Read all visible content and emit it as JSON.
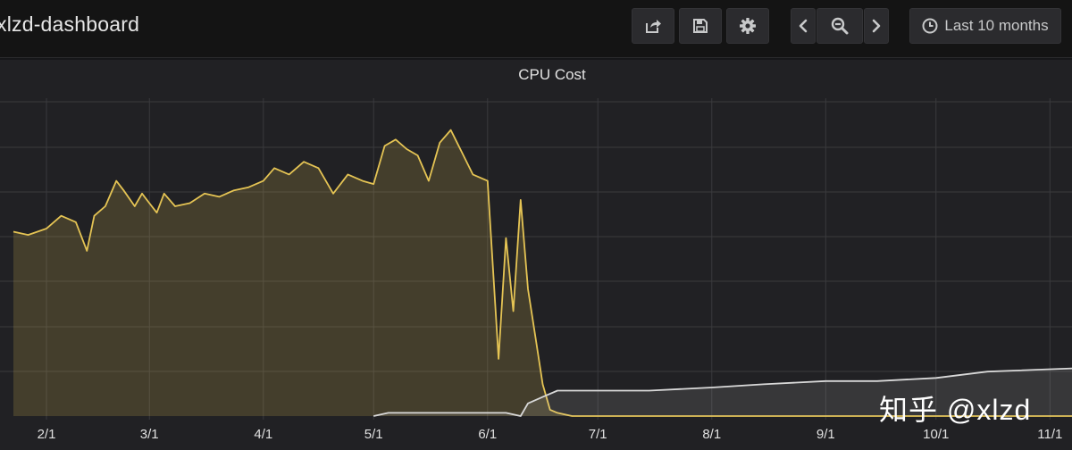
{
  "dashboard": {
    "title": "xlzd-dashboard"
  },
  "toolbar": {
    "share_icon": "share-icon",
    "save_icon": "save-icon",
    "settings_icon": "gear-icon",
    "back_icon": "chevron-left-icon",
    "zoom_icon": "zoom-out-icon",
    "forward_icon": "chevron-right-icon",
    "time_icon": "clock-icon",
    "time_range": "Last 10 months"
  },
  "panel": {
    "title": "CPU Cost"
  },
  "watermark": "知乎 @xlzd",
  "chart_data": {
    "type": "area",
    "title": "CPU Cost",
    "x_axis": {
      "type": "time",
      "ticks": [
        "2/1",
        "3/1",
        "4/1",
        "5/1",
        "6/1",
        "7/1",
        "8/1",
        "9/1",
        "10/1",
        "11/1"
      ],
      "range": [
        "01-23",
        "11-07"
      ]
    },
    "y_axis": {
      "labels_visible": false,
      "units": "relative (0 = baseline, 1 = top gridline)"
    },
    "grid": true,
    "legend": "none",
    "series": [
      {
        "name": "",
        "color": "#e5c454",
        "fill": true,
        "x": [
          "01-23",
          "01-27",
          "02-01",
          "02-05",
          "02-09",
          "02-12",
          "02-14",
          "02-17",
          "02-20",
          "02-22",
          "02-25",
          "02-27",
          "03-01",
          "03-03",
          "03-05",
          "03-08",
          "03-12",
          "03-16",
          "03-20",
          "03-24",
          "03-28",
          "04-01",
          "04-04",
          "04-08",
          "04-12",
          "04-16",
          "04-20",
          "04-24",
          "04-28",
          "05-01",
          "05-04",
          "05-07",
          "05-10",
          "05-13",
          "05-16",
          "05-19",
          "05-22",
          "05-25",
          "05-28",
          "06-01",
          "06-04",
          "06-06",
          "06-08",
          "06-10",
          "06-12",
          "06-14",
          "06-16",
          "06-18",
          "06-20",
          "06-24",
          "07-01",
          "07-15",
          "08-01",
          "08-15",
          "09-01",
          "09-15",
          "10-01",
          "10-15",
          "11-07"
        ],
        "values": [
          0.58,
          0.57,
          0.59,
          0.63,
          0.61,
          0.52,
          0.63,
          0.66,
          0.74,
          0.71,
          0.66,
          0.7,
          0.67,
          0.64,
          0.7,
          0.66,
          0.67,
          0.7,
          0.69,
          0.71,
          0.72,
          0.74,
          0.78,
          0.76,
          0.8,
          0.78,
          0.7,
          0.76,
          0.74,
          0.73,
          0.85,
          0.87,
          0.84,
          0.82,
          0.74,
          0.86,
          0.9,
          0.83,
          0.76,
          0.74,
          0.18,
          0.56,
          0.33,
          0.68,
          0.4,
          0.25,
          0.1,
          0.02,
          0.01,
          0.0,
          0.0,
          0.0,
          0.0,
          0.0,
          0.0,
          0.0,
          0.0,
          0.0,
          0.0
        ]
      },
      {
        "name": "",
        "color": "#d9d9d9",
        "fill": true,
        "x": [
          "01-23",
          "04-30",
          "05-01",
          "05-05",
          "05-20",
          "06-01",
          "06-06",
          "06-10",
          "06-12",
          "06-16",
          "06-20",
          "07-01",
          "07-15",
          "08-01",
          "08-15",
          "09-01",
          "09-15",
          "10-01",
          "10-15",
          "11-07"
        ],
        "values": [
          null,
          null,
          0.0,
          0.01,
          0.01,
          0.01,
          0.01,
          0.0,
          0.04,
          0.06,
          0.08,
          0.08,
          0.08,
          0.09,
          0.1,
          0.11,
          0.11,
          0.12,
          0.14,
          0.15
        ]
      }
    ]
  }
}
